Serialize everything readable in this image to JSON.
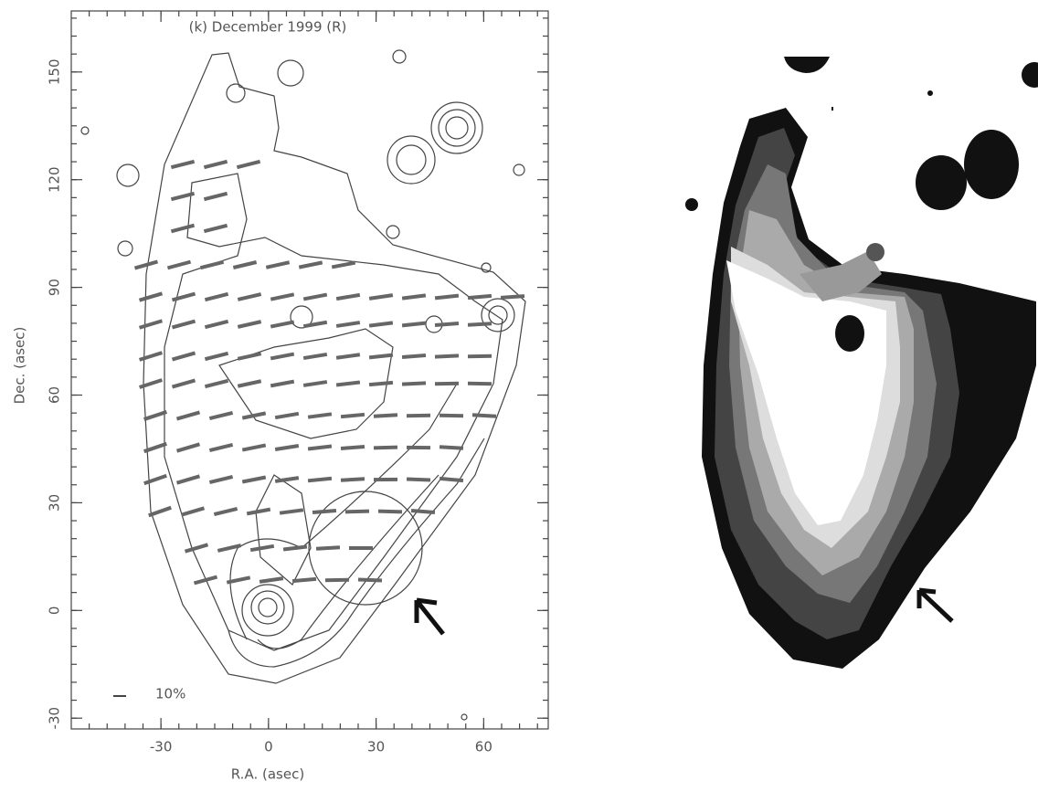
{
  "chart_data": {
    "type": "contour",
    "title": "(k)  December 1999 (R)",
    "xlabel": "R.A. (asec)",
    "ylabel": "Dec. (asec)",
    "xlim": [
      -55,
      78
    ],
    "ylim": [
      -33,
      167
    ],
    "xticks": [
      -30,
      0,
      30,
      60
    ],
    "yticks": [
      -30,
      0,
      30,
      60,
      90,
      120,
      150
    ],
    "annotations": [
      "10%"
    ]
  }
}
